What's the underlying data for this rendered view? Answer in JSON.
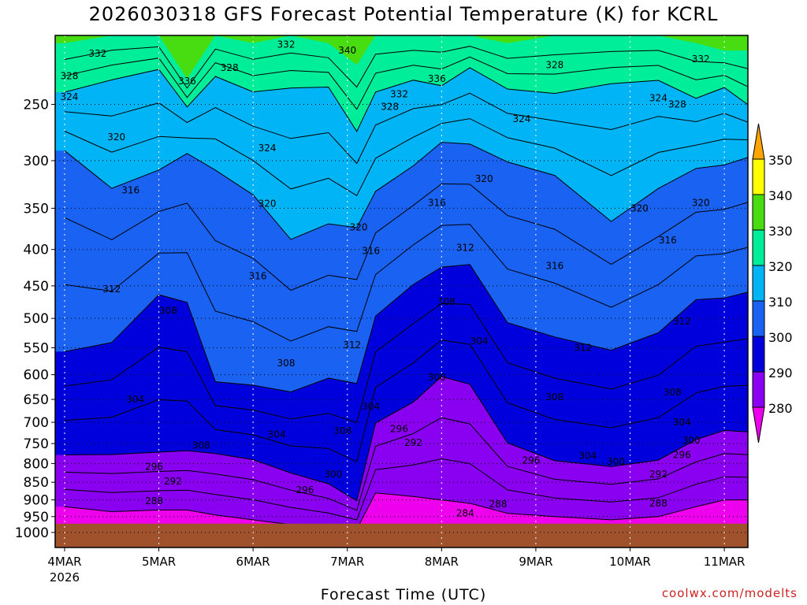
{
  "chart_data": {
    "type": "contour",
    "title": "2026030318 GFS Forecast Potential Temperature (K) for KCRL",
    "xlabel": "Forecast Time (UTC)",
    "ylabel": "",
    "credit": "coolwx.com/modelts",
    "x_ticks": [
      {
        "label": "4MAR",
        "sublabel": "2026",
        "day": 4
      },
      {
        "label": "5MAR",
        "sublabel": "",
        "day": 5
      },
      {
        "label": "6MAR",
        "sublabel": "",
        "day": 6
      },
      {
        "label": "7MAR",
        "sublabel": "",
        "day": 7
      },
      {
        "label": "8MAR",
        "sublabel": "",
        "day": 8
      },
      {
        "label": "9MAR",
        "sublabel": "",
        "day": 9
      },
      {
        "label": "10MAR",
        "sublabel": "",
        "day": 10
      },
      {
        "label": "11MAR",
        "sublabel": "",
        "day": 11
      }
    ],
    "xlim_days": [
      3.9,
      11.25
    ],
    "y_ticks": [
      250,
      300,
      350,
      400,
      450,
      500,
      550,
      600,
      650,
      700,
      750,
      800,
      850,
      900,
      950,
      1000
    ],
    "ylim_hpa": [
      1050,
      200
    ],
    "y_scale": "log-pressure",
    "grid": true,
    "levels": [
      280,
      290,
      300,
      310,
      320,
      330,
      340,
      350
    ],
    "colorbar_labels": [
      "350",
      "340",
      "330",
      "320",
      "310",
      "300",
      "290",
      "280"
    ],
    "colors": {
      "band_270_280": "#ee00ee",
      "band_280_290": "#8a00f0",
      "band_290_300": "#0000dd",
      "band_300_310": "#1a62f2",
      "band_310_320": "#00b4f5",
      "band_320_330": "#00ee9a",
      "band_330_340": "#48dd10",
      "band_340_350": "#ffff00",
      "band_350_360": "#ffa400",
      "ground": "#a0522d",
      "contour_line": "#000000"
    },
    "theta_profiles": [
      {
        "day": 4.0,
        "levels_hpa": [
          285,
          300,
          310,
          320,
          330,
          340
        ],
        "values": [
          920,
          770,
          560,
          300,
          240,
          205
        ]
      },
      {
        "day": 4.5,
        "levels_hpa": [
          285,
          300,
          310,
          320,
          330,
          340
        ],
        "values": [
          935,
          780,
          540,
          320,
          230,
          200
        ]
      },
      {
        "day": 5.0,
        "levels_hpa": [
          285,
          300,
          310,
          320,
          330,
          340
        ],
        "values": [
          930,
          775,
          460,
          310,
          225,
          190
        ]
      },
      {
        "day": 5.3,
        "levels_hpa": [
          285,
          300,
          310,
          320,
          330,
          340
        ],
        "values": [
          930,
          760,
          480,
          300,
          250,
          230
        ]
      },
      {
        "day": 5.6,
        "levels_hpa": [
          285,
          300,
          310,
          320,
          330,
          340
        ],
        "values": [
          945,
          780,
          610,
          300,
          230,
          200
        ]
      },
      {
        "day": 6.0,
        "levels_hpa": [
          285,
          300,
          310,
          320,
          330,
          340
        ],
        "values": [
          960,
          790,
          620,
          340,
          240,
          205
        ]
      },
      {
        "day": 6.4,
        "levels_hpa": [
          285,
          300,
          310,
          320,
          330,
          340
        ],
        "values": [
          975,
          820,
          640,
          390,
          235,
          200
        ]
      },
      {
        "day": 6.8,
        "levels_hpa": [
          285,
          300,
          310,
          320,
          330,
          340
        ],
        "values": [
          985,
          860,
          600,
          360,
          240,
          205
        ]
      },
      {
        "day": 7.1,
        "levels_hpa": [
          285,
          300,
          310,
          320,
          330,
          340
        ],
        "values": [
          990,
          900,
          620,
          380,
          270,
          220
        ]
      },
      {
        "day": 7.3,
        "levels_hpa": [
          285,
          300,
          310,
          320,
          330,
          340
        ],
        "values": [
          880,
          700,
          500,
          330,
          240,
          200
        ]
      },
      {
        "day": 7.7,
        "levels_hpa": [
          285,
          300,
          310,
          320,
          330,
          340
        ],
        "values": [
          890,
          660,
          440,
          300,
          235,
          200
        ]
      },
      {
        "day": 8.0,
        "levels_hpa": [
          285,
          300,
          310,
          320,
          330,
          340
        ],
        "values": [
          900,
          600,
          430,
          290,
          230,
          200
        ]
      },
      {
        "day": 8.3,
        "levels_hpa": [
          285,
          300,
          310,
          320,
          330,
          340
        ],
        "values": [
          910,
          620,
          420,
          280,
          225,
          200
        ]
      },
      {
        "day": 8.7,
        "levels_hpa": [
          285,
          300,
          310,
          320,
          330,
          340
        ],
        "values": [
          940,
          750,
          500,
          300,
          240,
          205
        ]
      },
      {
        "day": 9.2,
        "levels_hpa": [
          285,
          300,
          310,
          320,
          330,
          340
        ],
        "values": [
          950,
          790,
          540,
          320,
          235,
          200
        ]
      },
      {
        "day": 9.8,
        "levels_hpa": [
          285,
          300,
          310,
          320,
          330,
          340
        ],
        "values": [
          960,
          810,
          550,
          360,
          240,
          200
        ]
      },
      {
        "day": 10.3,
        "levels_hpa": [
          285,
          300,
          310,
          320,
          330,
          340
        ],
        "values": [
          950,
          790,
          520,
          330,
          230,
          200
        ]
      },
      {
        "day": 10.7,
        "levels_hpa": [
          285,
          300,
          310,
          320,
          330,
          340
        ],
        "values": [
          920,
          740,
          480,
          310,
          240,
          205
        ]
      },
      {
        "day": 11.0,
        "levels_hpa": [
          285,
          300,
          310,
          320,
          330,
          340
        ],
        "values": [
          900,
          720,
          460,
          300,
          245,
          210
        ]
      },
      {
        "day": 11.25,
        "levels_hpa": [
          285,
          300,
          310,
          320,
          330,
          340
        ],
        "values": [
          900,
          720,
          460,
          300,
          245,
          210
        ]
      }
    ],
    "surface_pressure_hpa": 972,
    "contour_labels": [
      {
        "text": "332",
        "day": 4.35,
        "p": 212
      },
      {
        "text": "328",
        "day": 4.05,
        "p": 228
      },
      {
        "text": "324",
        "day": 4.05,
        "p": 244
      },
      {
        "text": "336",
        "day": 5.3,
        "p": 232
      },
      {
        "text": "328",
        "day": 5.75,
        "p": 222
      },
      {
        "text": "332",
        "day": 6.35,
        "p": 206
      },
      {
        "text": "340",
        "day": 7.0,
        "p": 210
      },
      {
        "text": "336",
        "day": 7.95,
        "p": 230
      },
      {
        "text": "332",
        "day": 7.55,
        "p": 242
      },
      {
        "text": "328",
        "day": 7.45,
        "p": 252
      },
      {
        "text": "328",
        "day": 9.2,
        "p": 220
      },
      {
        "text": "332",
        "day": 10.75,
        "p": 216
      },
      {
        "text": "324",
        "day": 10.3,
        "p": 245
      },
      {
        "text": "328",
        "day": 10.5,
        "p": 250
      },
      {
        "text": "324",
        "day": 8.85,
        "p": 262
      },
      {
        "text": "320",
        "day": 4.55,
        "p": 278
      },
      {
        "text": "324",
        "day": 6.15,
        "p": 288
      },
      {
        "text": "320",
        "day": 8.45,
        "p": 318
      },
      {
        "text": "316",
        "day": 7.95,
        "p": 344
      },
      {
        "text": "320",
        "day": 6.15,
        "p": 345
      },
      {
        "text": "320",
        "day": 10.1,
        "p": 350
      },
      {
        "text": "320",
        "day": 10.75,
        "p": 344
      },
      {
        "text": "316",
        "day": 4.7,
        "p": 330
      },
      {
        "text": "320",
        "day": 7.12,
        "p": 372
      },
      {
        "text": "316",
        "day": 7.25,
        "p": 402
      },
      {
        "text": "312",
        "day": 8.25,
        "p": 398
      },
      {
        "text": "316",
        "day": 10.4,
        "p": 388
      },
      {
        "text": "316",
        "day": 9.2,
        "p": 422
      },
      {
        "text": "316",
        "day": 6.05,
        "p": 436
      },
      {
        "text": "312",
        "day": 4.5,
        "p": 455
      },
      {
        "text": "308",
        "day": 5.1,
        "p": 488
      },
      {
        "text": "308",
        "day": 8.05,
        "p": 474
      },
      {
        "text": "312",
        "day": 10.55,
        "p": 505
      },
      {
        "text": "304",
        "day": 8.4,
        "p": 538
      },
      {
        "text": "312",
        "day": 9.5,
        "p": 550
      },
      {
        "text": "312",
        "day": 7.05,
        "p": 545
      },
      {
        "text": "308",
        "day": 6.35,
        "p": 578
      },
      {
        "text": "300",
        "day": 7.95,
        "p": 605
      },
      {
        "text": "308",
        "day": 9.2,
        "p": 645
      },
      {
        "text": "308",
        "day": 10.45,
        "p": 635
      },
      {
        "text": "304",
        "day": 4.75,
        "p": 650
      },
      {
        "text": "304",
        "day": 7.25,
        "p": 665
      },
      {
        "text": "304",
        "day": 10.55,
        "p": 700
      },
      {
        "text": "296",
        "day": 7.55,
        "p": 715
      },
      {
        "text": "308",
        "day": 6.95,
        "p": 720
      },
      {
        "text": "304",
        "day": 6.25,
        "p": 728
      },
      {
        "text": "300",
        "day": 10.65,
        "p": 742
      },
      {
        "text": "308",
        "day": 5.45,
        "p": 755
      },
      {
        "text": "292",
        "day": 7.7,
        "p": 748
      },
      {
        "text": "296",
        "day": 10.55,
        "p": 778
      },
      {
        "text": "304",
        "day": 9.55,
        "p": 780
      },
      {
        "text": "300",
        "day": 9.85,
        "p": 795
      },
      {
        "text": "296",
        "day": 8.95,
        "p": 792
      },
      {
        "text": "296",
        "day": 4.95,
        "p": 808
      },
      {
        "text": "292",
        "day": 5.15,
        "p": 848
      },
      {
        "text": "292",
        "day": 10.3,
        "p": 828
      },
      {
        "text": "300",
        "day": 6.85,
        "p": 828
      },
      {
        "text": "296",
        "day": 6.55,
        "p": 872
      },
      {
        "text": "288",
        "day": 4.95,
        "p": 903
      },
      {
        "text": "288",
        "day": 8.6,
        "p": 912
      },
      {
        "text": "288",
        "day": 10.3,
        "p": 910
      },
      {
        "text": "284",
        "day": 8.25,
        "p": 940
      }
    ]
  }
}
